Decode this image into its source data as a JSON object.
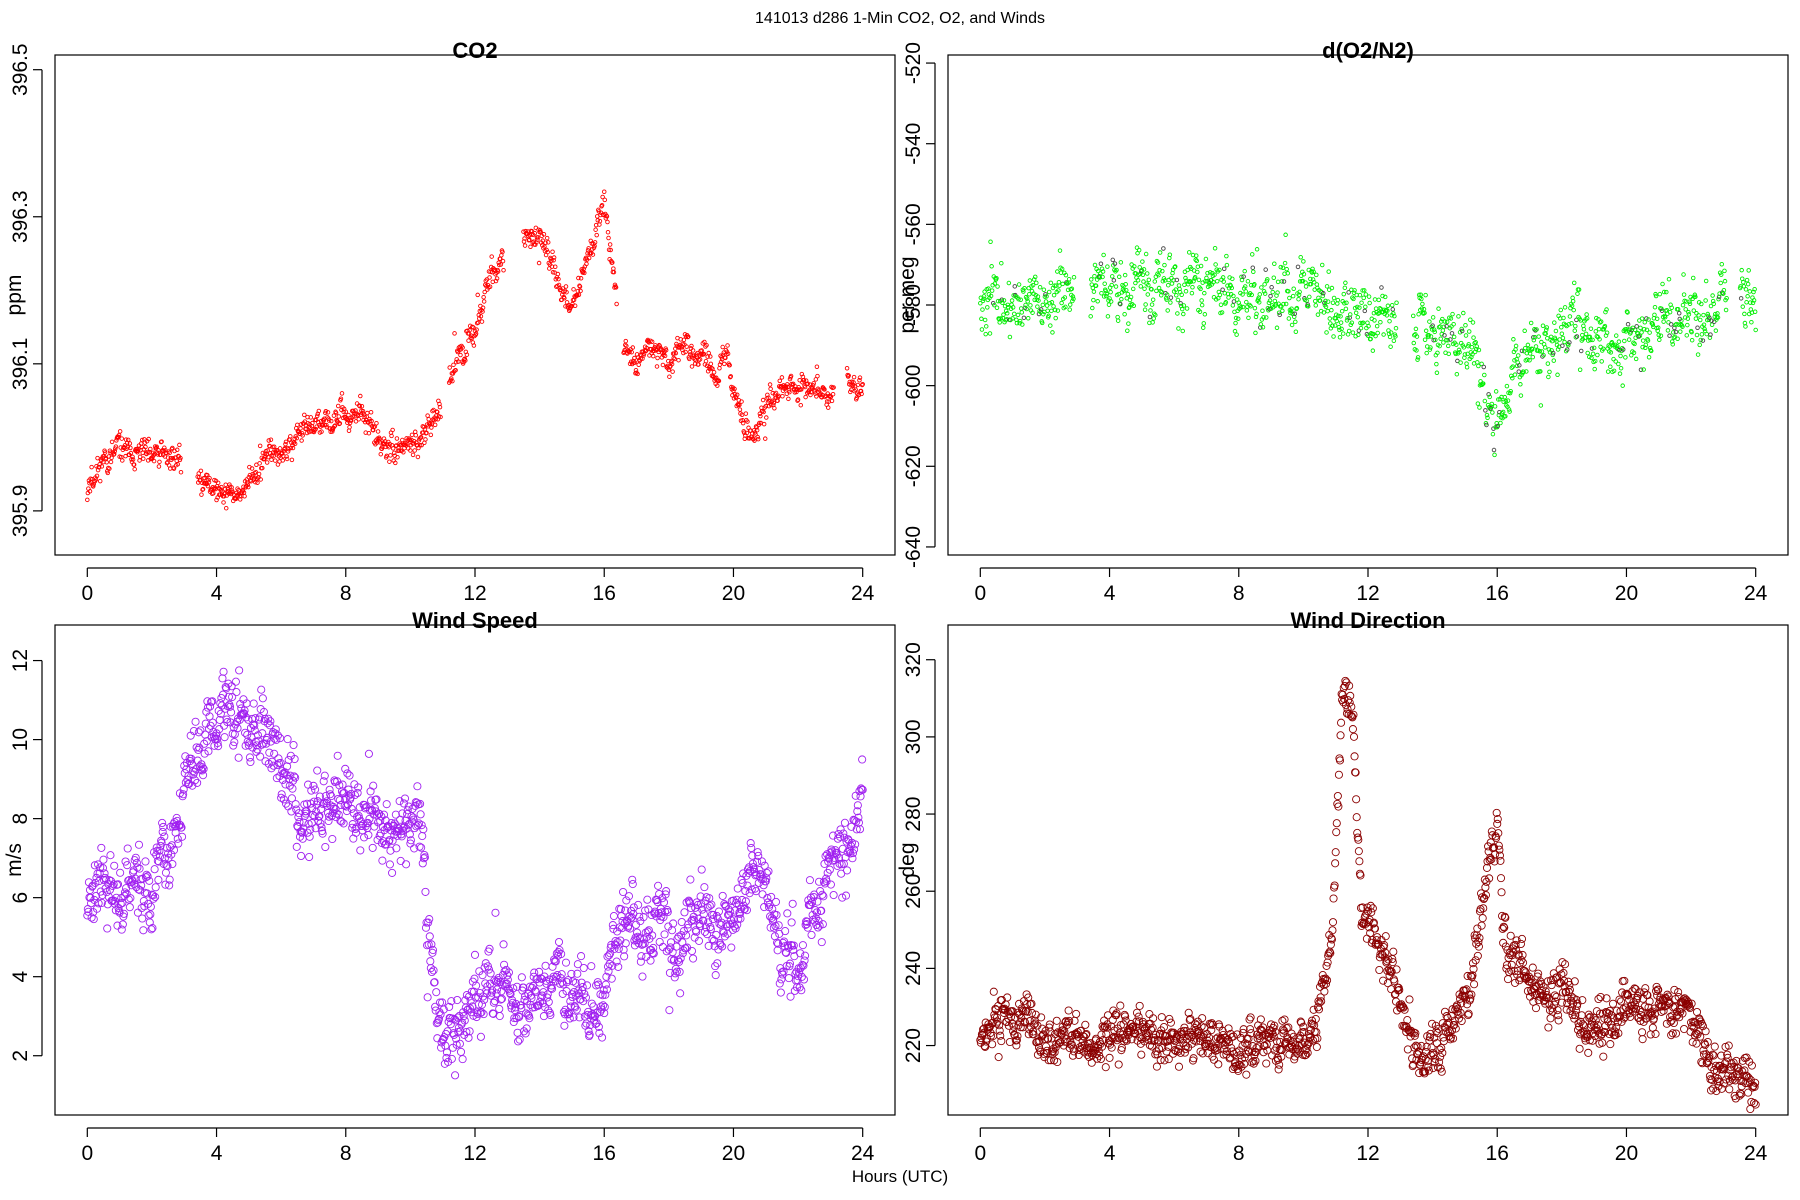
{
  "figure": {
    "suptitle": "141013   d286   1-Min CO2, O2, and Winds",
    "xlabel": "Hours (UTC)"
  },
  "chart_data": [
    {
      "type": "scatter",
      "title": "CO2",
      "xlabel": "",
      "ylabel": "ppm",
      "xlim": [
        -1,
        25
      ],
      "ylim": [
        395.84,
        396.52
      ],
      "xticks": [
        0,
        4,
        8,
        12,
        16,
        20,
        24
      ],
      "yticks": [
        395.9,
        396.1,
        396.3,
        396.5
      ],
      "ytick_labels": [
        "395.9",
        "396.1",
        "396.3",
        "396.5"
      ],
      "ytick_rotation": -90,
      "marker_color": "#ff0000",
      "marker_radius": 1.8,
      "grid": false,
      "seed": 11,
      "gaps": [
        [
          2.9,
          3.4
        ],
        [
          10.95,
          11.2
        ],
        [
          12.9,
          13.5
        ],
        [
          16.4,
          16.6
        ],
        [
          23.1,
          23.5
        ]
      ],
      "anchors": [
        [
          0,
          395.93
        ],
        [
          0.3,
          395.96
        ],
        [
          1.0,
          395.98
        ],
        [
          1.8,
          395.98
        ],
        [
          2.8,
          395.97
        ],
        [
          3.5,
          395.94
        ],
        [
          4.0,
          395.93
        ],
        [
          4.5,
          395.92
        ],
        [
          5.0,
          395.94
        ],
        [
          5.5,
          395.97
        ],
        [
          6.0,
          395.98
        ],
        [
          6.5,
          396.0
        ],
        [
          7.0,
          396.01
        ],
        [
          7.5,
          396.02
        ],
        [
          8.0,
          396.03
        ],
        [
          8.5,
          396.03
        ],
        [
          9.0,
          395.99
        ],
        [
          9.5,
          395.98
        ],
        [
          10.0,
          395.99
        ],
        [
          10.5,
          396.01
        ],
        [
          11.0,
          396.05
        ],
        [
          11.5,
          396.12
        ],
        [
          12.0,
          396.15
        ],
        [
          12.5,
          396.22
        ],
        [
          12.9,
          396.24
        ],
        [
          13.5,
          396.26
        ],
        [
          14.0,
          396.28
        ],
        [
          14.5,
          396.22
        ],
        [
          15.0,
          396.18
        ],
        [
          15.5,
          396.25
        ],
        [
          16.0,
          396.32
        ],
        [
          16.3,
          396.22
        ],
        [
          16.6,
          396.13
        ],
        [
          17.0,
          396.1
        ],
        [
          17.5,
          396.12
        ],
        [
          18.0,
          396.11
        ],
        [
          18.5,
          396.13
        ],
        [
          19.0,
          396.11
        ],
        [
          19.5,
          396.08
        ],
        [
          19.8,
          396.12
        ],
        [
          20.0,
          396.06
        ],
        [
          20.5,
          396.0
        ],
        [
          21.0,
          396.04
        ],
        [
          21.5,
          396.06
        ],
        [
          22.0,
          396.07
        ],
        [
          22.5,
          396.07
        ],
        [
          23.0,
          396.06
        ],
        [
          23.5,
          396.08
        ],
        [
          24.0,
          396.06
        ]
      ],
      "noise": 0.013
    },
    {
      "type": "scatter",
      "title": "d(O2/N2)",
      "xlabel": "",
      "ylabel": "per meg",
      "xlim": [
        -1,
        25
      ],
      "ylim": [
        -642,
        -518
      ],
      "xticks": [
        0,
        4,
        8,
        12,
        16,
        20,
        24
      ],
      "yticks": [
        -640,
        -620,
        -600,
        -580,
        -560,
        -540,
        -520
      ],
      "ytick_labels": [
        "-640",
        "-620",
        "-600",
        "-580",
        "-560",
        "-540",
        "-520"
      ],
      "ytick_rotation": -90,
      "marker_color": "#00ee00",
      "secondary_marker_color": "#444444",
      "marker_radius": 1.8,
      "grid": false,
      "seed": 23,
      "gaps": [
        [
          2.9,
          3.4
        ],
        [
          12.9,
          13.4
        ],
        [
          23.1,
          23.5
        ]
      ],
      "anchors": [
        [
          0,
          -578
        ],
        [
          1.0,
          -577
        ],
        [
          2.0,
          -578
        ],
        [
          2.8,
          -578
        ],
        [
          3.5,
          -576
        ],
        [
          5.0,
          -575
        ],
        [
          6.0,
          -575
        ],
        [
          7.0,
          -574
        ],
        [
          8.0,
          -577
        ],
        [
          9.0,
          -578
        ],
        [
          10.0,
          -577
        ],
        [
          11.0,
          -579
        ],
        [
          11.5,
          -580
        ],
        [
          12.0,
          -583
        ],
        [
          12.8,
          -587
        ],
        [
          13.5,
          -585
        ],
        [
          14.5,
          -586
        ],
        [
          15.0,
          -590
        ],
        [
          15.5,
          -596
        ],
        [
          16.0,
          -607
        ],
        [
          16.5,
          -596
        ],
        [
          17.0,
          -590
        ],
        [
          18.0,
          -587
        ],
        [
          19.0,
          -589
        ],
        [
          20.0,
          -588
        ],
        [
          21.0,
          -584
        ],
        [
          22.0,
          -582
        ],
        [
          23.0,
          -581
        ],
        [
          24.0,
          -583
        ]
      ],
      "noise": 5.5
    },
    {
      "type": "scatter",
      "title": "Wind Speed",
      "xlabel": "",
      "ylabel": "m/s",
      "xlim": [
        -1,
        25
      ],
      "ylim": [
        0.5,
        12.9
      ],
      "xticks": [
        0,
        4,
        8,
        12,
        16,
        20,
        24
      ],
      "yticks": [
        2,
        4,
        6,
        8,
        10,
        12
      ],
      "ytick_labels": [
        "2",
        "4",
        "6",
        "8",
        "10",
        "12"
      ],
      "ytick_rotation": -90,
      "marker_color": "#a020f0",
      "marker_radius": 3.6,
      "grid": false,
      "seed": 37,
      "gaps": [],
      "anchors": [
        [
          0,
          6.2
        ],
        [
          0.5,
          6.6
        ],
        [
          1.0,
          5.6
        ],
        [
          1.5,
          6.4
        ],
        [
          2.0,
          5.9
        ],
        [
          2.5,
          6.7
        ],
        [
          3.0,
          8.4
        ],
        [
          3.5,
          9.8
        ],
        [
          4.0,
          10.6
        ],
        [
          4.5,
          10.9
        ],
        [
          5.0,
          10.6
        ],
        [
          5.5,
          9.9
        ],
        [
          6.0,
          9.2
        ],
        [
          6.5,
          8.5
        ],
        [
          7.0,
          8.2
        ],
        [
          7.5,
          8.5
        ],
        [
          8.0,
          8.7
        ],
        [
          8.5,
          8.1
        ],
        [
          9.0,
          7.8
        ],
        [
          9.5,
          8.2
        ],
        [
          10.0,
          8.4
        ],
        [
          10.3,
          7.8
        ],
        [
          10.6,
          4.6
        ],
        [
          11.0,
          2.6
        ],
        [
          11.5,
          2.9
        ],
        [
          12.0,
          3.3
        ],
        [
          12.5,
          3.5
        ],
        [
          13.0,
          3.7
        ],
        [
          13.5,
          3.3
        ],
        [
          14.0,
          3.6
        ],
        [
          14.5,
          3.9
        ],
        [
          15.0,
          3.3
        ],
        [
          15.5,
          3.1
        ],
        [
          16.0,
          3.2
        ],
        [
          16.3,
          5.0
        ],
        [
          17.0,
          5.2
        ],
        [
          17.5,
          4.8
        ],
        [
          18.0,
          5.4
        ],
        [
          18.5,
          4.6
        ],
        [
          19.0,
          5.8
        ],
        [
          19.5,
          5.0
        ],
        [
          20.0,
          5.7
        ],
        [
          20.5,
          6.4
        ],
        [
          21.0,
          6.2
        ],
        [
          21.5,
          4.6
        ],
        [
          22.0,
          4.3
        ],
        [
          22.5,
          5.8
        ],
        [
          23.0,
          6.6
        ],
        [
          23.5,
          7.2
        ],
        [
          24.0,
          8.6
        ]
      ],
      "noise": 0.65
    },
    {
      "type": "scatter",
      "title": "Wind Direction",
      "xlabel": "",
      "ylabel": "deg",
      "xlim": [
        -1,
        25
      ],
      "ylim": [
        202,
        329
      ],
      "xticks": [
        0,
        4,
        8,
        12,
        16,
        20,
        24
      ],
      "yticks": [
        220,
        240,
        260,
        280,
        300,
        320
      ],
      "ytick_labels": [
        "220",
        "240",
        "260",
        "280",
        "300",
        "320"
      ],
      "ytick_rotation": -90,
      "marker_color": "#8b0000",
      "marker_radius": 3.6,
      "grid": false,
      "seed": 53,
      "gaps": [],
      "anchors": [
        [
          0,
          226
        ],
        [
          1.0,
          228
        ],
        [
          2.0,
          224
        ],
        [
          3.0,
          221
        ],
        [
          4.0,
          222
        ],
        [
          5.0,
          222
        ],
        [
          6.0,
          222
        ],
        [
          7.0,
          224
        ],
        [
          8.0,
          221
        ],
        [
          9.0,
          222
        ],
        [
          10.0,
          222
        ],
        [
          10.5,
          228
        ],
        [
          10.9,
          250
        ],
        [
          11.2,
          310
        ],
        [
          11.5,
          305
        ],
        [
          11.8,
          258
        ],
        [
          12.3,
          245
        ],
        [
          12.8,
          236
        ],
        [
          13.3,
          226
        ],
        [
          13.8,
          218
        ],
        [
          14.3,
          222
        ],
        [
          14.8,
          230
        ],
        [
          15.2,
          238
        ],
        [
          15.6,
          260
        ],
        [
          16.0,
          280
        ],
        [
          16.3,
          242
        ],
        [
          17.0,
          236
        ],
        [
          18.0,
          232
        ],
        [
          19.0,
          224
        ],
        [
          19.6,
          228
        ],
        [
          20.0,
          233
        ],
        [
          21.0,
          230
        ],
        [
          22.0,
          228
        ],
        [
          22.4,
          220
        ],
        [
          22.7,
          212
        ],
        [
          23.5,
          210
        ],
        [
          24.0,
          210
        ]
      ],
      "noise": 4.6
    }
  ]
}
